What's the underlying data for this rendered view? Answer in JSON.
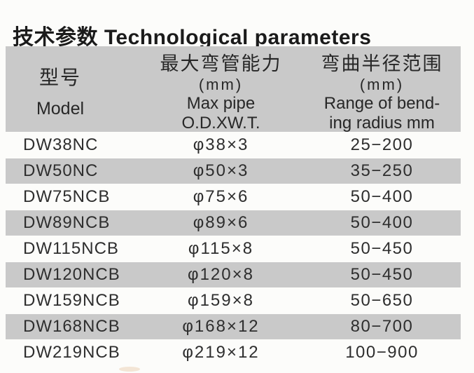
{
  "title": {
    "text": "技术参数 Technological parameters"
  },
  "table": {
    "header": {
      "model": {
        "zh": "型号",
        "en": "Model"
      },
      "max_pipe": {
        "zh": "最大弯管能力",
        "unit": "(mm)",
        "en_line1": "Max pipe",
        "en_line2": "O.D.XW.T."
      },
      "radius": {
        "zh": "弯曲半径范围",
        "unit": "(mm)",
        "en_line1": "Range of bend-",
        "en_line2": "ing radius mm"
      }
    },
    "rows": [
      {
        "model": "DW38NC",
        "max_pipe": "φ38×3",
        "radius_range": "25−200"
      },
      {
        "model": "DW50NC",
        "max_pipe": "φ50×3",
        "radius_range": "35−250"
      },
      {
        "model": "DW75NCB",
        "max_pipe": "φ75×6",
        "radius_range": "50−400"
      },
      {
        "model": "DW89NCB",
        "max_pipe": "φ89×6",
        "radius_range": "50−400"
      },
      {
        "model": "DW115NCB",
        "max_pipe": "φ115×8",
        "radius_range": "50−450"
      },
      {
        "model": "DW120NCB",
        "max_pipe": "φ120×8",
        "radius_range": "50−450"
      },
      {
        "model": "DW159NCB",
        "max_pipe": "φ159×8",
        "radius_range": "50−650"
      },
      {
        "model": "DW168NCB",
        "max_pipe": "φ168×12",
        "radius_range": "80−700"
      },
      {
        "model": "DW219NCB",
        "max_pipe": "φ219×12",
        "radius_range": "100−900"
      }
    ]
  },
  "colors": {
    "band_gray": "#c9c9c9",
    "text": "#2e2e2e",
    "title": "#1b1b1b",
    "background": "#fcfcfa"
  }
}
